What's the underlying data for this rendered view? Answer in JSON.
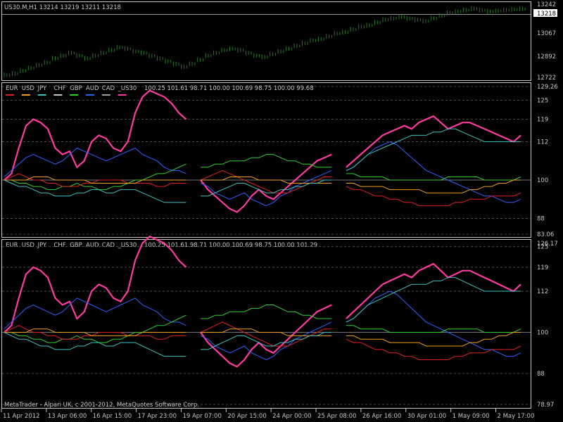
{
  "window": {
    "symbol_info": "US30.M,H1  13214 13219 13211 13218"
  },
  "footer": {
    "copyright": "MetaTrader - Alpari UK, c 2001-2012, MetaQuotes Software Corp."
  },
  "colors": {
    "price": "#1f7a1f",
    "EUR": "#e02020",
    "USD": "#f0a020",
    "JPY": "#40c0c0",
    "CHF": "#c8c8c8",
    "GBP": "#30d030",
    "AUD": "#3060ff",
    "CAD": "#a0a0a0",
    "US30": "#ff3aa0",
    "grid": "#5a5a5a",
    "border": "#c8c8c8"
  },
  "chart_data": [
    {
      "type": "bar",
      "title": "US30.M,H1",
      "ylim": [
        12722,
        13242
      ],
      "y_ticks": [
        "13242",
        "13067",
        "12892",
        "12722"
      ],
      "current_price": "13218",
      "values": [
        12740,
        12750,
        12770,
        12790,
        12810,
        12830,
        12860,
        12880,
        12900,
        12880,
        12860,
        12880,
        12900,
        12920,
        12940,
        12930,
        12910,
        12900,
        12880,
        12860,
        12840,
        12820,
        12800,
        12820,
        12850,
        12880,
        12900,
        12920,
        12930,
        12920,
        12900,
        12880,
        12870,
        12890,
        12910,
        12930,
        12950,
        12970,
        12990,
        13000,
        13020,
        13040,
        13050,
        13070,
        13090,
        13100,
        13120,
        13140,
        13150,
        13160,
        13150,
        13140,
        13130,
        13150,
        13170,
        13190,
        13200,
        13210,
        13220,
        13210,
        13200,
        13205,
        13210,
        13215,
        13218
      ]
    },
    {
      "type": "line",
      "legend": [
        "EUR",
        "USD",
        "JPY",
        "CHF",
        "GBP",
        "AUD",
        "CAD",
        "_US30"
      ],
      "legend_values": "100.25 101.61 98.71 100.00 100.69 98.75 100.00 99.68",
      "y_ticks": [
        "129.26",
        "125",
        "119",
        "112",
        "100",
        "88",
        "83.06"
      ],
      "ylim": [
        83.06,
        129.26
      ],
      "series": [
        {
          "name": "US30",
          "values": [
            100,
            102,
            110,
            117,
            119,
            118,
            116,
            110,
            108,
            109,
            104,
            106,
            112,
            114,
            113,
            110,
            109,
            112,
            121,
            126,
            128,
            127,
            126,
            124,
            121,
            119,
            null,
            100,
            97,
            95,
            93,
            91,
            90,
            92,
            95,
            97,
            95,
            94,
            96,
            98,
            100,
            102,
            104,
            106,
            107,
            108,
            null,
            104,
            106,
            108,
            110,
            112,
            114,
            115,
            116,
            117,
            116,
            118,
            119,
            120,
            118,
            116,
            117,
            118,
            118,
            117,
            116,
            115,
            114,
            113,
            112,
            114
          ]
        },
        {
          "name": "AUD",
          "values": [
            101,
            103,
            105,
            107,
            108,
            107,
            106,
            105,
            106,
            108,
            110,
            109,
            108,
            107,
            106,
            107,
            108,
            109,
            110,
            108,
            107,
            106,
            104,
            103,
            103,
            102,
            null,
            99,
            98,
            96,
            95,
            94,
            95,
            96,
            94,
            93,
            92,
            93,
            95,
            96,
            98,
            99,
            100,
            101,
            102,
            103,
            null,
            103,
            104,
            106,
            108,
            110,
            111,
            112,
            111,
            109,
            107,
            105,
            103,
            102,
            101,
            100,
            99,
            98,
            97,
            96,
            95,
            95,
            94,
            93,
            93,
            94
          ]
        },
        {
          "name": "GBP",
          "values": [
            100,
            100,
            99,
            99,
            98,
            98,
            97,
            97,
            98,
            98,
            99,
            98,
            98,
            97,
            97,
            98,
            98,
            99,
            100,
            100,
            101,
            102,
            102,
            103,
            104,
            105,
            null,
            104,
            104,
            105,
            105,
            106,
            106,
            106,
            107,
            107,
            108,
            108,
            107,
            106,
            106,
            105,
            105,
            104,
            104,
            104,
            null,
            102,
            102,
            101,
            101,
            101,
            101,
            100,
            100,
            100,
            100,
            100,
            100,
            100,
            100,
            101,
            101,
            101,
            101,
            101,
            100,
            100,
            100,
            100,
            100,
            101
          ]
        },
        {
          "name": "EUR",
          "values": [
            100,
            101,
            102,
            101,
            100,
            100,
            99,
            99,
            98,
            98,
            98,
            99,
            99,
            100,
            100,
            100,
            100,
            99,
            99,
            99,
            99,
            98,
            98,
            99,
            99,
            99,
            null,
            100,
            101,
            102,
            103,
            102,
            101,
            100,
            99,
            98,
            97,
            96,
            96,
            96,
            97,
            98,
            99,
            100,
            101,
            101,
            null,
            98,
            97,
            97,
            96,
            95,
            95,
            94,
            94,
            93,
            93,
            92,
            92,
            92,
            92,
            92,
            93,
            93,
            94,
            94,
            94,
            95,
            95,
            95,
            95,
            96
          ]
        },
        {
          "name": "USD",
          "values": [
            100,
            100,
            100,
            100,
            101,
            101,
            101,
            100,
            100,
            100,
            100,
            100,
            99,
            99,
            99,
            99,
            99,
            99,
            99,
            100,
            100,
            100,
            100,
            100,
            100,
            100,
            null,
            100,
            100,
            100,
            100,
            101,
            101,
            101,
            101,
            100,
            100,
            100,
            100,
            99,
            99,
            99,
            99,
            99,
            99,
            99,
            null,
            99,
            99,
            98,
            98,
            98,
            98,
            97,
            97,
            97,
            97,
            97,
            96,
            96,
            96,
            96,
            96,
            96,
            97,
            97,
            98,
            98,
            99,
            99,
            100,
            100
          ]
        },
        {
          "name": "JPY",
          "values": [
            100,
            99,
            98,
            98,
            97,
            96,
            96,
            95,
            95,
            95,
            96,
            96,
            97,
            97,
            96,
            96,
            97,
            97,
            97,
            96,
            95,
            94,
            93,
            93,
            93,
            93,
            null,
            95,
            95,
            96,
            97,
            98,
            99,
            99,
            98,
            97,
            96,
            96,
            97,
            97,
            98,
            98,
            99,
            99,
            100,
            100,
            null,
            103,
            104,
            106,
            108,
            109,
            110,
            111,
            112,
            113,
            114,
            114,
            114,
            115,
            115,
            116,
            116,
            115,
            114,
            113,
            112,
            112,
            112,
            112,
            112,
            112
          ]
        }
      ]
    },
    {
      "type": "line",
      "legend": [
        "EUR",
        "USD",
        "JPY",
        "CHF",
        "GBP",
        "AUD",
        "CAD",
        "_US30"
      ],
      "legend_values": "100.25 101.61 98.71 100.00 100.69 98.75 100.00 101.29",
      "y_ticks": [
        "125",
        "119",
        "112",
        "100",
        "88",
        "78.97"
      ],
      "ylim": [
        78.97,
        126.17
      ],
      "top_label": "126.17",
      "series": [
        {
          "name": "US30",
          "values": [
            100,
            102,
            110,
            117,
            119,
            118,
            116,
            110,
            108,
            109,
            104,
            106,
            112,
            114,
            113,
            110,
            109,
            112,
            121,
            126,
            128,
            127,
            126,
            124,
            121,
            119,
            null,
            100,
            97,
            95,
            93,
            91,
            90,
            92,
            95,
            97,
            95,
            94,
            96,
            98,
            100,
            102,
            104,
            106,
            107,
            108,
            null,
            104,
            106,
            108,
            110,
            112,
            114,
            115,
            116,
            117,
            116,
            118,
            119,
            120,
            118,
            116,
            117,
            118,
            118,
            117,
            116,
            115,
            114,
            113,
            112,
            114
          ]
        },
        {
          "name": "AUD",
          "values": [
            101,
            103,
            105,
            107,
            108,
            107,
            106,
            105,
            106,
            108,
            110,
            109,
            108,
            107,
            106,
            107,
            108,
            109,
            110,
            108,
            107,
            106,
            104,
            103,
            103,
            102,
            null,
            99,
            98,
            96,
            95,
            94,
            95,
            96,
            94,
            93,
            92,
            93,
            95,
            96,
            98,
            99,
            100,
            101,
            102,
            103,
            null,
            103,
            104,
            106,
            108,
            110,
            111,
            112,
            111,
            109,
            107,
            105,
            103,
            102,
            101,
            100,
            99,
            98,
            97,
            96,
            95,
            95,
            94,
            93,
            93,
            94
          ]
        },
        {
          "name": "GBP",
          "values": [
            100,
            100,
            99,
            99,
            98,
            98,
            97,
            97,
            98,
            98,
            99,
            98,
            98,
            97,
            97,
            98,
            98,
            99,
            100,
            100,
            101,
            102,
            102,
            103,
            104,
            105,
            null,
            104,
            104,
            105,
            105,
            106,
            106,
            106,
            107,
            107,
            108,
            108,
            107,
            106,
            106,
            105,
            105,
            104,
            104,
            104,
            null,
            102,
            102,
            101,
            101,
            101,
            101,
            100,
            100,
            100,
            100,
            100,
            100,
            100,
            100,
            101,
            101,
            101,
            101,
            101,
            100,
            100,
            100,
            100,
            100,
            101
          ]
        },
        {
          "name": "EUR",
          "values": [
            100,
            101,
            102,
            101,
            100,
            100,
            99,
            99,
            98,
            98,
            98,
            99,
            99,
            100,
            100,
            100,
            100,
            99,
            99,
            99,
            99,
            98,
            98,
            99,
            99,
            99,
            null,
            100,
            101,
            102,
            103,
            102,
            101,
            100,
            99,
            98,
            97,
            96,
            96,
            96,
            97,
            98,
            99,
            100,
            101,
            101,
            null,
            98,
            97,
            97,
            96,
            95,
            95,
            94,
            94,
            93,
            93,
            92,
            92,
            92,
            92,
            92,
            93,
            93,
            94,
            94,
            94,
            95,
            95,
            95,
            95,
            96
          ]
        },
        {
          "name": "USD",
          "values": [
            100,
            100,
            100,
            100,
            101,
            101,
            101,
            100,
            100,
            100,
            100,
            100,
            99,
            99,
            99,
            99,
            99,
            99,
            99,
            100,
            100,
            100,
            100,
            100,
            100,
            100,
            null,
            100,
            100,
            100,
            100,
            101,
            101,
            101,
            101,
            100,
            100,
            100,
            100,
            99,
            99,
            99,
            99,
            99,
            99,
            99,
            null,
            99,
            99,
            98,
            98,
            98,
            98,
            97,
            97,
            97,
            97,
            97,
            96,
            96,
            96,
            96,
            96,
            96,
            97,
            97,
            98,
            98,
            99,
            99,
            100,
            100
          ]
        },
        {
          "name": "JPY",
          "values": [
            100,
            99,
            98,
            98,
            97,
            96,
            96,
            95,
            95,
            95,
            96,
            96,
            97,
            97,
            96,
            96,
            97,
            97,
            97,
            96,
            95,
            94,
            93,
            93,
            93,
            93,
            null,
            95,
            95,
            96,
            97,
            98,
            99,
            99,
            98,
            97,
            96,
            96,
            97,
            97,
            98,
            98,
            99,
            99,
            100,
            100,
            null,
            103,
            104,
            106,
            108,
            109,
            110,
            111,
            112,
            113,
            114,
            114,
            114,
            115,
            115,
            116,
            116,
            115,
            114,
            113,
            112,
            112,
            112,
            112,
            112,
            112
          ]
        }
      ]
    }
  ],
  "x_labels": [
    "11 Apr 2012",
    "13 Apr 06:00",
    "16 Apr 15:00",
    "17 Apr 23:00",
    "19 Apr 07:00",
    "20 Apr 15:00",
    "24 Apr 00:00",
    "25 Apr 08:00",
    "26 Apr 16:00",
    "30 Apr 01:00",
    "1 May 09:00",
    "2 May 17:00"
  ]
}
